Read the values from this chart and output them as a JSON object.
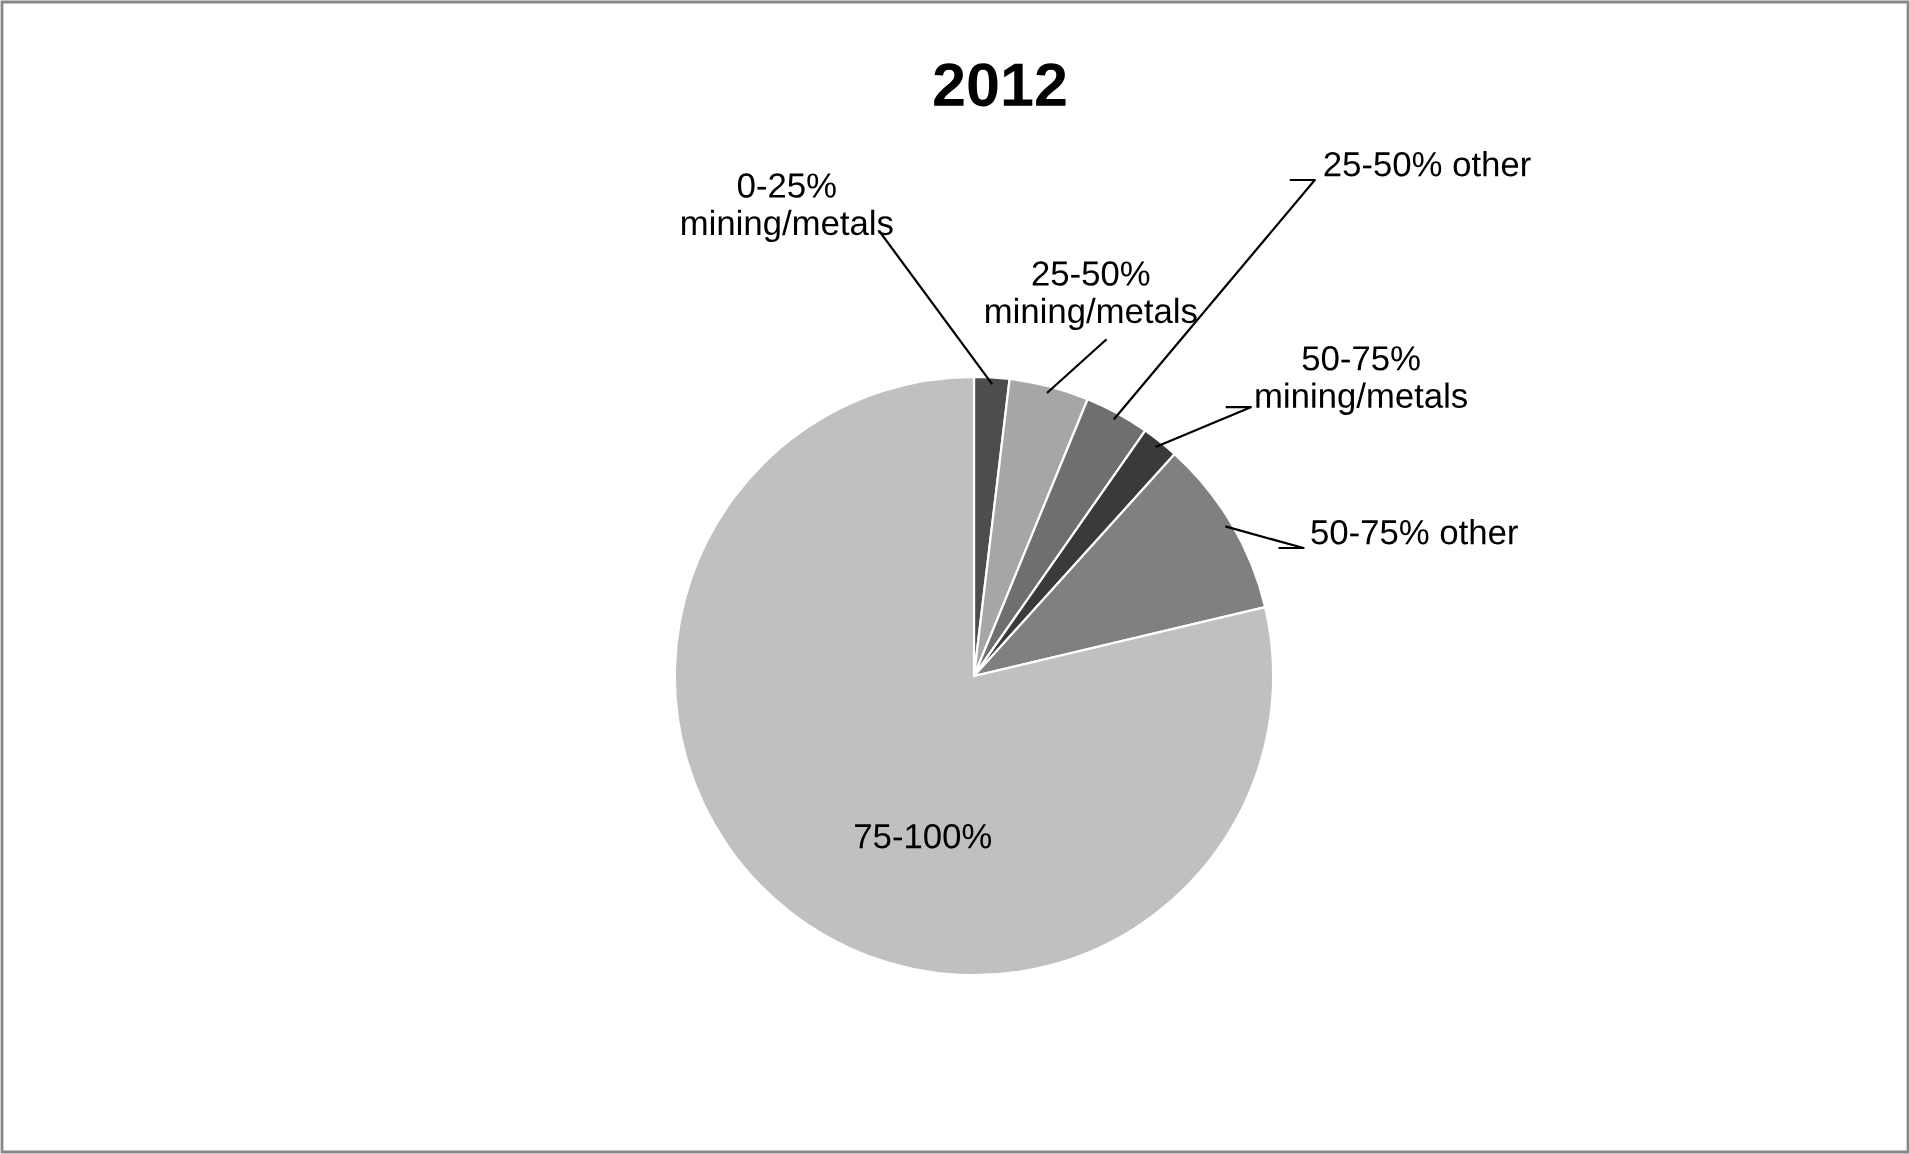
{
  "chart_data": {
    "type": "pie",
    "title": "2012",
    "categories": [
      "0-25%\nmining/metals",
      "25-50%\nmining/metals",
      "25-50% other",
      "50-75%\nmining/metals",
      "50-75% other",
      "75-100%"
    ],
    "values": [
      1.9,
      4.3,
      3.5,
      2.0,
      9.6,
      78.7
    ],
    "colors": [
      "#4d4d4d",
      "#a6a6a6",
      "#6f6f6f",
      "#3a3a3a",
      "#808080",
      "#c0c0c0"
    ],
    "legend": false
  }
}
